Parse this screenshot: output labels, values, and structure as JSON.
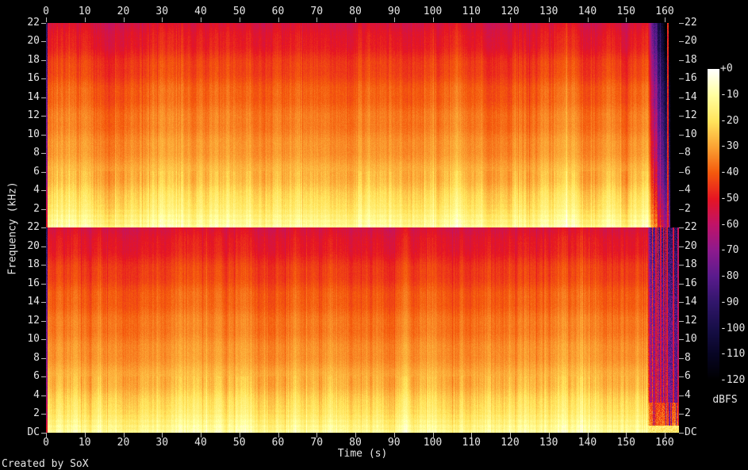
{
  "colors": {
    "background": "#000000",
    "label_text": "#e6e6e6",
    "tick_mark": "#b8b8b8"
  },
  "footer": {
    "credit": "Created by SoX"
  },
  "chart_data": {
    "type": "heatmap",
    "subtype": "stereo-audio-spectrogram",
    "title": "",
    "xlabel": "Time (s)",
    "ylabel": "Frequency (kHz)",
    "colorbar_label": "dBFS",
    "channels": [
      "left channel (top pane)",
      "right channel (bottom pane)"
    ],
    "x_axis": {
      "unit": "s",
      "min": 0,
      "max_tick": 160,
      "max_visible": 163.7,
      "tick_step": 10,
      "tick_labels": [
        "0",
        "10",
        "20",
        "30",
        "40",
        "50",
        "60",
        "70",
        "80",
        "90",
        "100",
        "110",
        "120",
        "130",
        "140",
        "150",
        "160"
      ]
    },
    "y_axis": {
      "unit": "kHz",
      "min": 0,
      "max": 22,
      "tick_step": 2,
      "top_pane_tick_labels": [
        "22",
        "20",
        "18",
        "16",
        "14",
        "12",
        "10",
        "8",
        "6",
        "4",
        "2"
      ],
      "bottom_pane_tick_labels": [
        "22",
        "20",
        "18",
        "16",
        "14",
        "12",
        "10",
        "8",
        "6",
        "4",
        "2",
        "DC"
      ]
    },
    "colorbar": {
      "unit": "dBFS",
      "max": 0,
      "min": -120,
      "tick_step": 10,
      "tick_labels": [
        "+0",
        "-10",
        "-20",
        "-30",
        "-40",
        "-50",
        "-60",
        "-70",
        "-80",
        "-90",
        "-100",
        "-110",
        "-120"
      ],
      "palette_stops": [
        [
          0,
          "#ffffff"
        ],
        [
          -10,
          "#ffffa0"
        ],
        [
          -20,
          "#ffe45c"
        ],
        [
          -30,
          "#fba233"
        ],
        [
          -40,
          "#f4590d"
        ],
        [
          -50,
          "#e51523"
        ],
        [
          -60,
          "#c01368"
        ],
        [
          -70,
          "#8d1a8d"
        ],
        [
          -80,
          "#5a1b8d"
        ],
        [
          -90,
          "#31166b"
        ],
        [
          -100,
          "#170e48"
        ],
        [
          -110,
          "#070524"
        ],
        [
          -120,
          "#000000"
        ]
      ]
    },
    "content": {
      "base_level_db_by_khz": [
        [
          0,
          -11
        ],
        [
          0.3,
          -12
        ],
        [
          0.7,
          -14
        ],
        [
          1,
          -15
        ],
        [
          1.5,
          -16.2
        ],
        [
          2,
          -17.5
        ],
        [
          2.5,
          -19
        ],
        [
          3,
          -21
        ],
        [
          3.5,
          -22.6
        ],
        [
          4,
          -24
        ],
        [
          5,
          -26.2
        ],
        [
          6,
          -28
        ],
        [
          7,
          -30
        ],
        [
          8,
          -31.5
        ],
        [
          9,
          -33
        ],
        [
          10,
          -34.2
        ],
        [
          11,
          -35.3
        ],
        [
          12,
          -36.5
        ],
        [
          13,
          -37.7
        ],
        [
          14,
          -39
        ],
        [
          15,
          -40.4
        ],
        [
          16,
          -42
        ],
        [
          17,
          -43.7
        ],
        [
          18,
          -45.5
        ],
        [
          19,
          -47.6
        ],
        [
          20,
          -50
        ],
        [
          20.6,
          -51.4
        ],
        [
          21.3,
          -52.4
        ],
        [
          22,
          -53.5
        ]
      ],
      "start_transient": {
        "until_s": 0.35,
        "level_drop_db": 40
      },
      "dark_columns_s": [
        121.6,
        123.3,
        125.0,
        126.7,
        128.5,
        130.2
      ],
      "left_channel_end": {
        "fade_start_s": 155.6,
        "fade_stage1_end_s": 156.6,
        "stage1_drop_db": 25,
        "silence_from_s": 161.25,
        "stage2_extra_drop_db": 52,
        "click_s": 160.8,
        "click_level_db": -48
      },
      "right_channel_end": {
        "decay_start_s": 155.4,
        "background_level_db": -66,
        "red_streak_level_db": -50,
        "low_freq_burst_level_db": -36,
        "bottom_edge_level_db": -18,
        "tail_to_s": 163.7
      },
      "texture": {
        "column_noise_db": 3,
        "pixel_noise_db": 1.3,
        "low_freq_banding_db": 1.5,
        "banding_below_khz": 3.4
      }
    }
  }
}
